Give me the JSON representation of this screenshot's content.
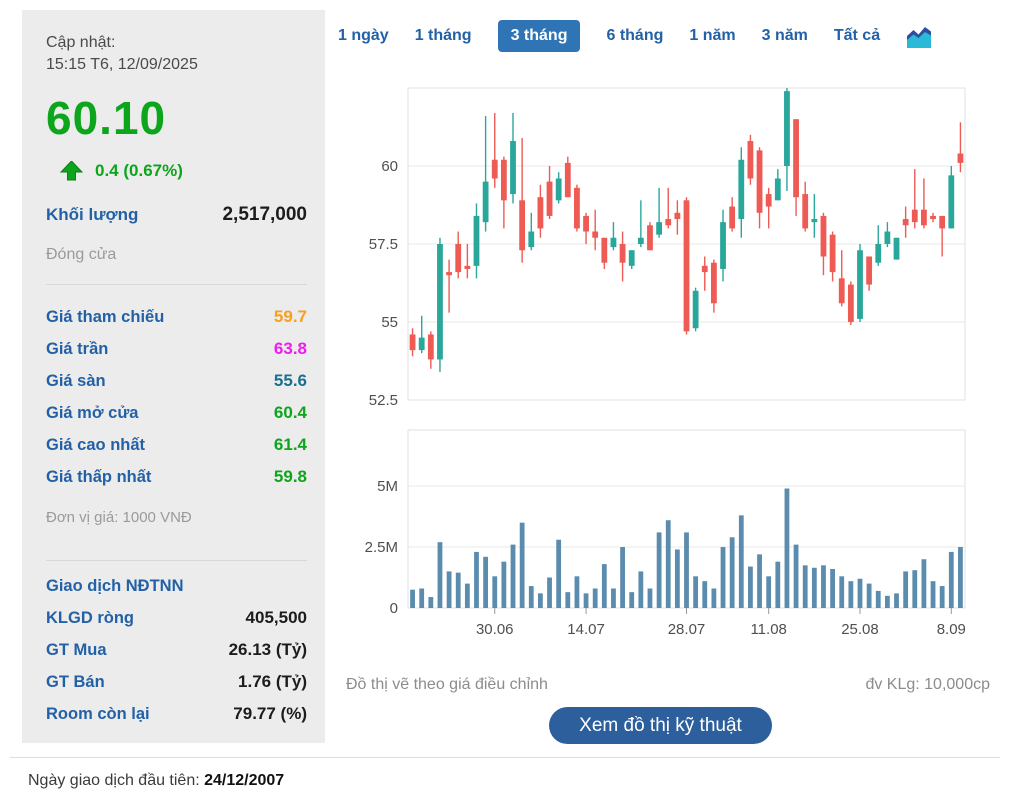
{
  "sidebar": {
    "updated_label": "Cập nhật:",
    "updated_time": "15:15 T6, 12/09/2025",
    "price": "60.10",
    "change": "0.4 (0.67%)",
    "volume_label": "Khối lượng",
    "volume_value": "2,517,000",
    "session_status": "Đóng cửa",
    "price_rows": [
      {
        "label": "Giá tham chiếu",
        "value": "59.7",
        "color": "#f8a01c"
      },
      {
        "label": "Giá trần",
        "value": "63.8",
        "color": "#ee1cee"
      },
      {
        "label": "Giá sàn",
        "value": "55.6",
        "color": "#1a7090"
      },
      {
        "label": "Giá mở cửa",
        "value": "60.4",
        "color": "#0da51c"
      },
      {
        "label": "Giá cao nhất",
        "value": "61.4",
        "color": "#0da51c"
      },
      {
        "label": "Giá thấp nhất",
        "value": "59.8",
        "color": "#0da51c"
      }
    ],
    "unit_note": "Đơn vị giá: 1000 VNĐ",
    "foreign_header": "Giao dịch NĐTNN",
    "foreign_rows": [
      {
        "label": "KLGD ròng",
        "value": "405,500"
      },
      {
        "label": "GT Mua",
        "value": "26.13 (Tỷ)"
      },
      {
        "label": "GT Bán",
        "value": "1.76 (Tỷ)"
      },
      {
        "label": "Room còn lại",
        "value": "79.77 (%)"
      }
    ],
    "price_color": "#0da51c",
    "label_color": "#2361a6"
  },
  "tabs": [
    {
      "label": "1 ngày"
    },
    {
      "label": "1 tháng"
    },
    {
      "label": "3 tháng"
    },
    {
      "label": "6 tháng"
    },
    {
      "label": "1 năm"
    },
    {
      "label": "3 năm"
    },
    {
      "label": "Tất cả"
    }
  ],
  "active_tab": "3 tháng",
  "chart_footer": {
    "left_note": "Đồ thị vẽ theo giá điều chỉnh",
    "right_note": "đv KLg: 10,000cp",
    "button_label": "Xem đồ thị kỹ thuật"
  },
  "footer": {
    "first_trading_label": "Ngày giao dịch đầu tiên:",
    "first_trading_date": "24/12/2007"
  },
  "chart_data": {
    "type": "candlestick_with_volume",
    "up_color": "#2aa79b",
    "down_color": "#ee5a54",
    "volume_color": "#5b8cad",
    "grid_color": "#e9e9e9",
    "border_color": "#e2e2e2",
    "axis_text_color": "#4f4f4f",
    "price_axis_ticks": [
      60,
      57.5,
      55,
      52.5
    ],
    "price_axis_labels": [
      "60",
      "57.5",
      "55",
      "52.5"
    ],
    "price_range": [
      52.5,
      62.5
    ],
    "volume_axis_ticks_m": [
      5,
      2.5,
      0
    ],
    "volume_axis_labels": [
      "5M",
      "2.5M",
      "0"
    ],
    "volume_range_m": [
      0,
      7.3
    ],
    "x_ticks": [
      {
        "label": "30.06",
        "index": 9
      },
      {
        "label": "14.07",
        "index": 19
      },
      {
        "label": "28.07",
        "index": 30
      },
      {
        "label": "11.08",
        "index": 39
      },
      {
        "label": "25.08",
        "index": 49
      },
      {
        "label": "8.09",
        "index": 59
      }
    ],
    "candles_ohlc": [
      [
        54.6,
        54.8,
        53.9,
        54.1
      ],
      [
        54.1,
        55.2,
        54.0,
        54.5
      ],
      [
        54.6,
        54.7,
        53.5,
        53.8
      ],
      [
        53.8,
        57.7,
        53.4,
        57.5
      ],
      [
        56.6,
        57.0,
        55.3,
        56.5
      ],
      [
        57.5,
        57.9,
        56.4,
        56.6
      ],
      [
        56.8,
        57.5,
        56.4,
        56.7
      ],
      [
        56.8,
        58.8,
        56.4,
        58.4
      ],
      [
        58.2,
        61.6,
        57.9,
        59.5
      ],
      [
        60.2,
        61.7,
        59.3,
        59.6
      ],
      [
        60.2,
        60.3,
        58.0,
        58.9
      ],
      [
        59.1,
        61.7,
        58.8,
        60.8
      ],
      [
        58.9,
        60.9,
        56.9,
        57.3
      ],
      [
        57.4,
        58.5,
        57.3,
        57.9
      ],
      [
        59.0,
        59.4,
        57.7,
        58.0
      ],
      [
        59.5,
        60.0,
        58.3,
        58.4
      ],
      [
        58.9,
        59.8,
        58.8,
        59.6
      ],
      [
        60.1,
        60.3,
        59.0,
        59.0
      ],
      [
        59.3,
        59.4,
        57.9,
        58.0
      ],
      [
        58.4,
        58.5,
        57.5,
        57.9
      ],
      [
        57.9,
        58.6,
        57.3,
        57.7
      ],
      [
        57.7,
        57.7,
        56.7,
        56.9
      ],
      [
        57.4,
        58.2,
        57.3,
        57.7
      ],
      [
        57.5,
        57.9,
        56.3,
        56.9
      ],
      [
        56.8,
        57.3,
        56.7,
        57.3
      ],
      [
        57.5,
        58.9,
        57.4,
        57.7
      ],
      [
        58.1,
        58.2,
        57.3,
        57.3
      ],
      [
        57.8,
        59.3,
        57.7,
        58.2
      ],
      [
        58.3,
        59.3,
        58.0,
        58.1
      ],
      [
        58.5,
        58.9,
        57.8,
        58.3
      ],
      [
        58.9,
        59.0,
        54.6,
        54.7
      ],
      [
        54.8,
        56.1,
        54.7,
        56.0
      ],
      [
        56.8,
        57.1,
        56.0,
        56.6
      ],
      [
        56.9,
        57.0,
        55.3,
        55.6
      ],
      [
        56.7,
        58.6,
        56.3,
        58.2
      ],
      [
        58.7,
        59.0,
        57.9,
        58.0
      ],
      [
        58.3,
        60.6,
        57.7,
        60.2
      ],
      [
        60.8,
        61.0,
        59.4,
        59.6
      ],
      [
        60.5,
        60.6,
        58.0,
        58.5
      ],
      [
        59.1,
        59.3,
        58.0,
        58.7
      ],
      [
        58.9,
        59.9,
        58.9,
        59.6
      ],
      [
        60.0,
        62.5,
        59.2,
        62.4
      ],
      [
        61.5,
        61.5,
        58.4,
        59.0
      ],
      [
        59.1,
        59.5,
        57.9,
        58.0
      ],
      [
        58.2,
        59.1,
        57.7,
        58.3
      ],
      [
        58.4,
        58.5,
        56.5,
        57.1
      ],
      [
        57.8,
        57.9,
        56.3,
        56.6
      ],
      [
        56.4,
        57.3,
        55.5,
        55.6
      ],
      [
        56.2,
        56.3,
        54.9,
        55.0
      ],
      [
        55.1,
        57.5,
        55.0,
        57.3
      ],
      [
        57.1,
        57.1,
        56.0,
        56.2
      ],
      [
        56.9,
        58.1,
        56.8,
        57.5
      ],
      [
        57.5,
        58.2,
        57.4,
        57.9
      ],
      [
        57.0,
        57.7,
        57.0,
        57.7
      ],
      [
        58.3,
        58.7,
        57.7,
        58.1
      ],
      [
        58.6,
        59.9,
        58.0,
        58.2
      ],
      [
        58.6,
        59.6,
        58.0,
        58.1
      ],
      [
        58.4,
        58.5,
        58.2,
        58.3
      ],
      [
        58.4,
        58.4,
        57.1,
        58.0
      ],
      [
        58.0,
        60.0,
        58.0,
        59.7
      ],
      [
        60.4,
        61.4,
        59.8,
        60.1
      ]
    ],
    "volumes_m": [
      0.75,
      0.8,
      0.45,
      2.7,
      1.5,
      1.45,
      1.0,
      2.3,
      2.1,
      1.3,
      1.9,
      2.6,
      3.5,
      0.9,
      0.6,
      1.25,
      2.8,
      0.65,
      1.3,
      0.6,
      0.8,
      1.8,
      0.8,
      2.5,
      0.65,
      1.5,
      0.8,
      3.1,
      3.6,
      2.4,
      3.1,
      1.3,
      1.1,
      0.8,
      2.5,
      2.9,
      3.8,
      1.7,
      2.2,
      1.3,
      1.9,
      4.9,
      2.6,
      1.75,
      1.65,
      1.75,
      1.6,
      1.3,
      1.1,
      1.2,
      1.0,
      0.7,
      0.5,
      0.6,
      1.5,
      1.55,
      2.0,
      1.1,
      0.9,
      2.3,
      2.5
    ]
  }
}
